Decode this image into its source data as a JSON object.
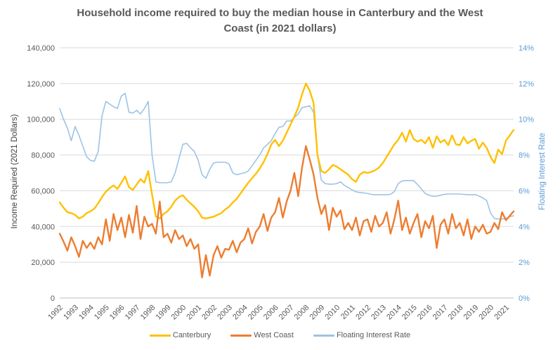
{
  "title": "Household income required to buy the median house in Canterbury and the West Coast (in 2021 dollars)",
  "colors": {
    "canterbury": "#FFC000",
    "west_coast": "#ED7D31",
    "interest_rate": "#9DC3E6",
    "right_axis_text": "#5B9BD5",
    "axis_text": "#595959",
    "left_axis_title_text": "#404040",
    "gridline": "#D9D9D9",
    "axis_line": "#BFBFBF",
    "title_text": "#595959"
  },
  "chart_data": {
    "type": "line",
    "x_start": 1992,
    "x_step": 0.25,
    "x_tick_labels": [
      "1992",
      "1993",
      "1994",
      "1995",
      "1996",
      "1997",
      "1998",
      "1999",
      "2000",
      "2001",
      "2002",
      "2003",
      "2004",
      "2005",
      "2006",
      "2007",
      "2008",
      "2009",
      "2010",
      "2011",
      "2012",
      "2013",
      "2014",
      "2015",
      "2016",
      "2017",
      "2018",
      "2019",
      "2020",
      "2021"
    ],
    "left_axis": {
      "label": "Income Required (2021 Dollars)",
      "tick_labels": [
        "0",
        "20,000",
        "40,000",
        "60,000",
        "80,000",
        "100,000",
        "120,000",
        "140,000"
      ],
      "min": 0,
      "max": 140000
    },
    "right_axis": {
      "label": "Floating Interest Rate",
      "tick_labels": [
        "0%",
        "2%",
        "4%",
        "6%",
        "8%",
        "10%",
        "12%",
        "14%"
      ],
      "min": 0,
      "max": 14
    },
    "grid": "horizontal-only",
    "legend_position": "bottom",
    "series": [
      {
        "name": "Canterbury",
        "axis": "left",
        "color": "#FFC000",
        "line_width": 2.4,
        "values": [
          53500,
          50500,
          48000,
          47500,
          46500,
          44500,
          45500,
          47500,
          48500,
          50000,
          53000,
          56500,
          59500,
          61500,
          63000,
          61000,
          64500,
          68000,
          62000,
          60500,
          63500,
          66500,
          64500,
          71000,
          58000,
          45500,
          44500,
          47000,
          48500,
          51000,
          54500,
          56500,
          57500,
          55000,
          53000,
          51000,
          48500,
          45000,
          44500,
          45000,
          45500,
          46500,
          47500,
          49500,
          51000,
          53500,
          55500,
          58500,
          61500,
          64500,
          67000,
          69500,
          72500,
          76000,
          80500,
          86000,
          88500,
          85000,
          88000,
          92500,
          97000,
          101500,
          106500,
          114000,
          120000,
          116000,
          109000,
          80000,
          71000,
          70000,
          72000,
          74500,
          73500,
          72000,
          70500,
          69000,
          66500,
          65000,
          69000,
          70500,
          70000,
          70500,
          71500,
          73000,
          75500,
          79000,
          82500,
          86000,
          88500,
          92500,
          87500,
          94000,
          89000,
          87500,
          88500,
          86500,
          90000,
          84000,
          90500,
          87000,
          88500,
          85500,
          91000,
          86000,
          85500,
          90000,
          86500,
          88000,
          89000,
          83500,
          87000,
          84000,
          79000,
          75500,
          83000,
          80500,
          88000,
          91000,
          94000
        ]
      },
      {
        "name": "West Coast",
        "axis": "left",
        "color": "#ED7D31",
        "line_width": 2.4,
        "values": [
          36000,
          31500,
          26500,
          34000,
          29000,
          23000,
          32000,
          28000,
          31000,
          27500,
          34000,
          30000,
          44000,
          32000,
          47000,
          38000,
          45000,
          34000,
          46500,
          36500,
          51500,
          33000,
          45500,
          40000,
          41500,
          36000,
          54000,
          34000,
          36000,
          31000,
          38000,
          33000,
          35000,
          29000,
          33000,
          27500,
          30000,
          11500,
          24000,
          12500,
          24000,
          29000,
          22500,
          27500,
          27000,
          32000,
          25500,
          31000,
          33000,
          39000,
          30500,
          37000,
          40000,
          47000,
          37500,
          45000,
          48000,
          56000,
          45000,
          54000,
          60000,
          70000,
          57000,
          73000,
          85000,
          77500,
          69000,
          56000,
          47000,
          52000,
          38000,
          50500,
          45500,
          49000,
          38500,
          42000,
          38000,
          45000,
          35000,
          43000,
          44000,
          37000,
          46000,
          40000,
          42000,
          48000,
          36000,
          44000,
          54500,
          38000,
          45000,
          36000,
          42000,
          47000,
          34000,
          43000,
          39000,
          46000,
          28000,
          41000,
          44000,
          36000,
          47000,
          39000,
          42000,
          35000,
          44000,
          33000,
          40000,
          37000,
          41000,
          36000,
          37000,
          42000,
          38500,
          48000,
          43500,
          46000,
          48500
        ]
      },
      {
        "name": "Floating Interest Rate",
        "axis": "right",
        "color": "#9DC3E6",
        "line_width": 1.6,
        "values": [
          10.6,
          10.0,
          9.5,
          8.8,
          9.6,
          9.1,
          8.5,
          7.9,
          7.7,
          7.65,
          8.2,
          10.2,
          11.0,
          10.85,
          10.7,
          10.6,
          11.3,
          11.45,
          10.4,
          10.35,
          10.5,
          10.3,
          10.6,
          11.0,
          8.0,
          6.5,
          6.45,
          6.45,
          6.45,
          6.5,
          7.0,
          7.8,
          8.6,
          8.65,
          8.4,
          8.2,
          7.7,
          6.9,
          6.7,
          7.2,
          7.55,
          7.6,
          7.6,
          7.6,
          7.5,
          7.0,
          6.9,
          6.95,
          7.0,
          7.1,
          7.4,
          7.7,
          8.0,
          8.4,
          8.6,
          8.8,
          9.2,
          9.55,
          9.6,
          9.9,
          9.9,
          10.1,
          10.3,
          10.65,
          10.7,
          10.75,
          10.4,
          8.0,
          6.6,
          6.4,
          6.37,
          6.37,
          6.4,
          6.5,
          6.3,
          6.18,
          6.05,
          5.94,
          5.9,
          5.88,
          5.85,
          5.8,
          5.78,
          5.78,
          5.78,
          5.78,
          5.8,
          5.95,
          6.4,
          6.55,
          6.57,
          6.57,
          6.57,
          6.35,
          6.1,
          5.85,
          5.75,
          5.7,
          5.7,
          5.75,
          5.8,
          5.82,
          5.82,
          5.82,
          5.82,
          5.8,
          5.78,
          5.78,
          5.79,
          5.7,
          5.6,
          5.45,
          4.76,
          4.45,
          4.42,
          4.42,
          4.45,
          4.55,
          4.6
        ]
      }
    ],
    "legend": [
      "Canterbury",
      "West Coast",
      "Floating Interest Rate"
    ]
  }
}
